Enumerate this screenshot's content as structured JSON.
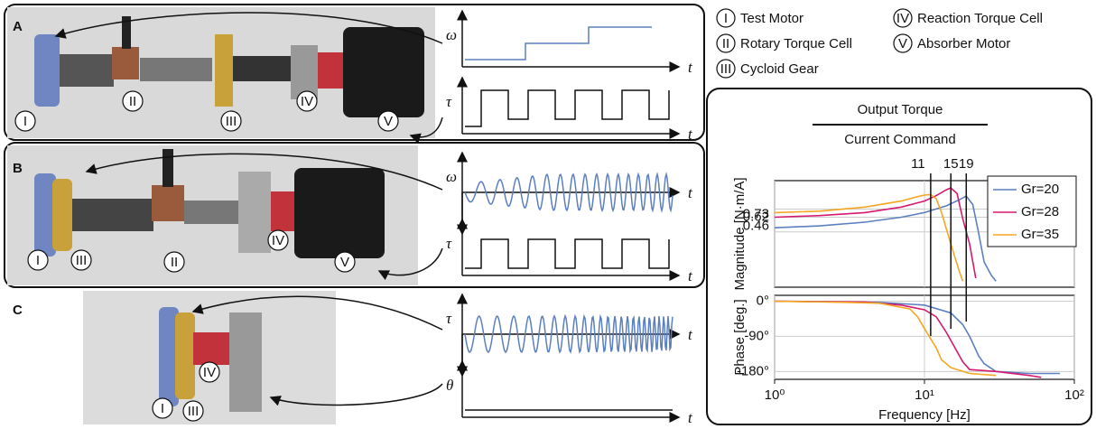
{
  "components": [
    {
      "numeral": "I",
      "name": "Test Motor"
    },
    {
      "numeral": "II",
      "name": "Rotary Torque Cell"
    },
    {
      "numeral": "III",
      "name": "Cycloid Gear"
    },
    {
      "numeral": "IV",
      "name": "Reaction Torque Cell"
    },
    {
      "numeral": "V",
      "name": "Absorber Motor"
    }
  ],
  "panels": [
    {
      "letter": "A",
      "signals": [
        "ω",
        "τ"
      ]
    },
    {
      "letter": "B",
      "signals": [
        "ω",
        "τ"
      ]
    },
    {
      "letter": "C",
      "signals": [
        "τ",
        "θ"
      ]
    }
  ],
  "time_label": "t",
  "chart_data": [
    {
      "type": "line",
      "title": "Output Torque",
      "subtitle": "Current Command",
      "y_label": "Magnitude [N·m/A]",
      "log_x": true,
      "log_y": true,
      "grid": true,
      "legend": "upper right",
      "xlim": [
        1,
        100
      ],
      "ylim": [
        0.15,
        1.3
      ],
      "yticks": [
        0.46,
        0.62,
        0.73
      ],
      "markers": [
        11,
        15,
        19
      ],
      "series": [
        {
          "name": "Gr=20",
          "color": "#5b7fbf",
          "x": [
            1,
            2,
            4,
            7,
            10,
            14,
            17,
            19,
            21,
            23,
            25,
            28,
            30
          ],
          "values": [
            0.5,
            0.52,
            0.56,
            0.62,
            0.68,
            0.78,
            0.88,
            0.95,
            0.8,
            0.45,
            0.25,
            0.19,
            0.17
          ]
        },
        {
          "name": "Gr=28",
          "color": "#d6196e",
          "x": [
            1,
            2,
            4,
            7,
            10,
            12,
            14,
            15,
            16.5,
            18,
            20,
            22
          ],
          "values": [
            0.62,
            0.64,
            0.68,
            0.76,
            0.86,
            0.96,
            1.08,
            1.12,
            1.0,
            0.6,
            0.36,
            0.18
          ]
        },
        {
          "name": "Gr=35",
          "color": "#f6a623",
          "x": [
            1,
            2,
            4,
            7,
            9,
            10,
            11,
            12,
            13,
            15,
            17,
            18
          ],
          "values": [
            0.68,
            0.7,
            0.76,
            0.86,
            0.94,
            0.97,
            0.98,
            0.9,
            0.68,
            0.36,
            0.21,
            0.17
          ]
        }
      ]
    },
    {
      "type": "line",
      "y_label": "Phase [deg.]",
      "x_label": "Frequency [Hz]",
      "log_x": true,
      "grid": true,
      "xlim": [
        1,
        100
      ],
      "ylim": [
        -200,
        15
      ],
      "xticks": [
        {
          "value": 1,
          "label": "10⁰"
        },
        {
          "value": 10,
          "label": "10¹"
        },
        {
          "value": 100,
          "label": "10²"
        }
      ],
      "yticks": [
        {
          "value": 0,
          "label": "0°"
        },
        {
          "value": -90,
          "label": "-90°"
        },
        {
          "value": -180,
          "label": "-180°"
        }
      ],
      "series": [
        {
          "name": "Gr=20",
          "color": "#5b7fbf",
          "x": [
            1,
            5,
            10,
            15,
            18,
            20,
            23,
            25,
            30,
            50,
            80
          ],
          "values": [
            0,
            -3,
            -10,
            -30,
            -60,
            -90,
            -140,
            -160,
            -180,
            -185,
            -185
          ]
        },
        {
          "name": "Gr=28",
          "color": "#d6196e",
          "x": [
            1,
            4,
            7,
            10,
            12,
            14,
            16,
            18,
            20,
            30,
            50,
            60
          ],
          "values": [
            0,
            -2,
            -10,
            -22,
            -40,
            -80,
            -120,
            -155,
            -175,
            -180,
            -190,
            -195
          ]
        },
        {
          "name": "Gr=35",
          "color": "#f6a623",
          "x": [
            1,
            3,
            5,
            8,
            9,
            10,
            12,
            13,
            15,
            20,
            30
          ],
          "values": [
            0,
            -3,
            -5,
            -20,
            -40,
            -70,
            -120,
            -150,
            -170,
            -185,
            -190
          ]
        }
      ]
    }
  ]
}
